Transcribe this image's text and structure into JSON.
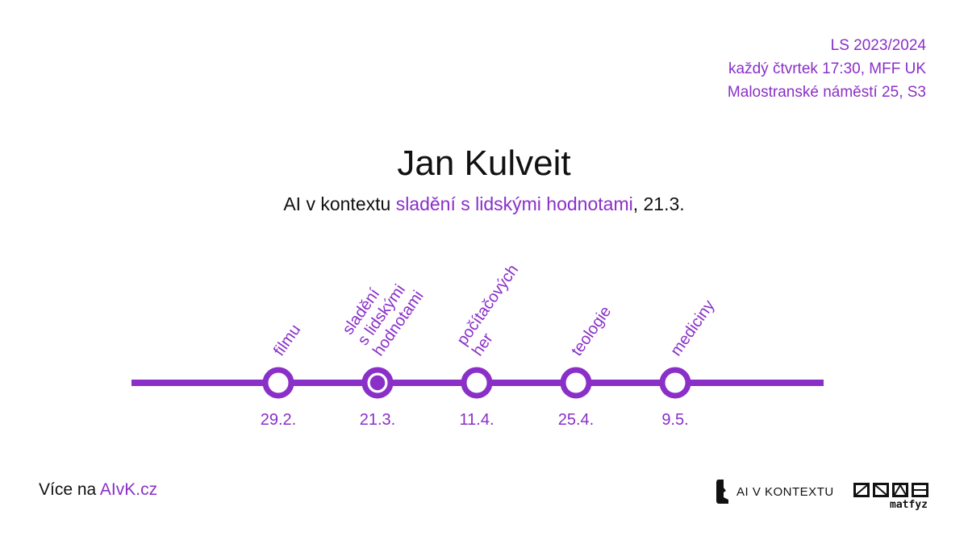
{
  "info": {
    "semester": "LS 2023/2024",
    "schedule": "každý čtvrtek 17:30, MFF UK",
    "place": "Malostranské náměstí 25, S3"
  },
  "speaker": "Jan Kulveit",
  "subtitle": {
    "prefix": "AI v kontextu ",
    "topic": "sladění s lidskými hodnotami",
    "suffix": ", 21.3."
  },
  "timeline": {
    "events": [
      {
        "date": "29.2.",
        "topic_lines": [
          "filmu"
        ],
        "current": false
      },
      {
        "date": "21.3.",
        "topic_lines": [
          "sladění",
          "s lidskými",
          "hodnotami"
        ],
        "current": true
      },
      {
        "date": "11.4.",
        "topic_lines": [
          "počítačových",
          "her"
        ],
        "current": false
      },
      {
        "date": "25.4.",
        "topic_lines": [
          "teologie"
        ],
        "current": false
      },
      {
        "date": "9.5.",
        "topic_lines": [
          "mediciny"
        ],
        "current": false
      }
    ]
  },
  "footer": {
    "more_prefix": "Více na ",
    "more_link": "AIvK.cz",
    "logo_text": "AI V KONTEXTU",
    "matfyz_text": "matfyz"
  },
  "colors": {
    "accent": "#8a2fc8",
    "text": "#111111",
    "background": "#ffffff"
  },
  "icons": {
    "aivk_logo": "aivk-head-logo-icon",
    "matfyz_logo": "matfyz-logo-icon"
  }
}
